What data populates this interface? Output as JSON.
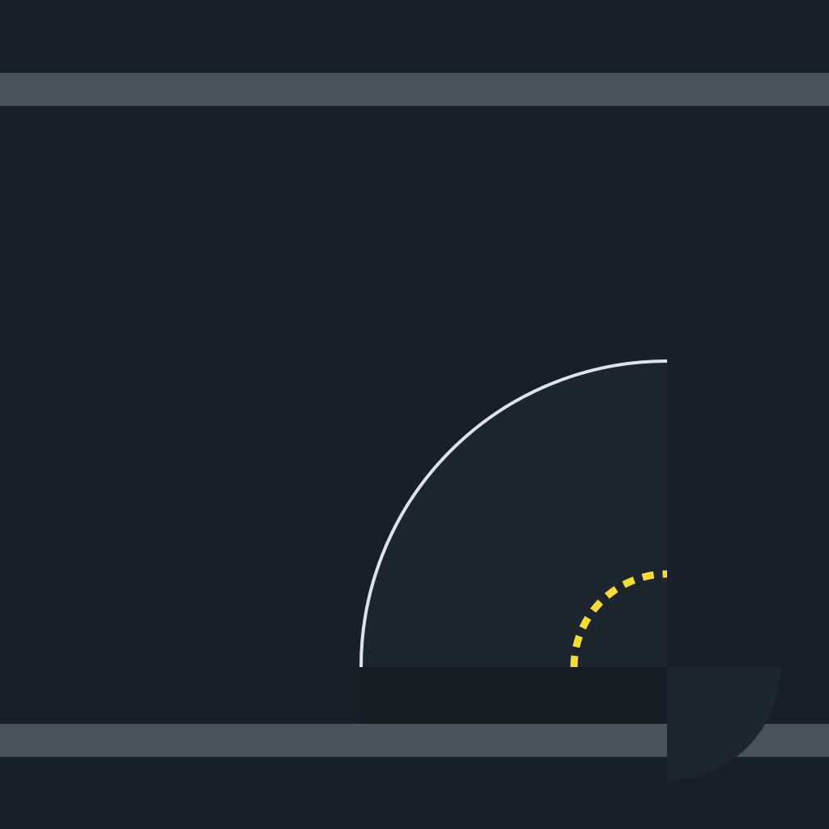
{
  "colors": {
    "background": "#1a1f25",
    "band": "#48525b",
    "arc_fill": "#1e252d",
    "arc_outline": "#dde3e8",
    "dashed_arc": "#f5dc3a",
    "floor_strip": "#171b20",
    "corner_wedge": "#1e252d"
  }
}
